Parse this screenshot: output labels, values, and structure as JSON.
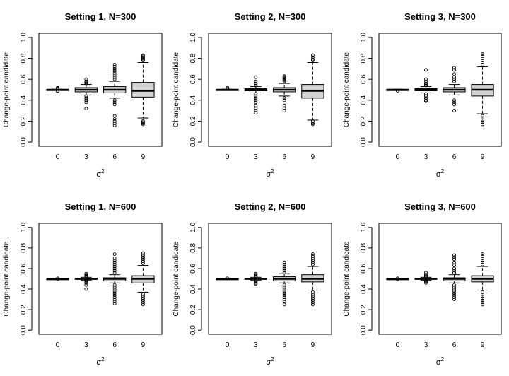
{
  "chart_data": [
    {
      "type": "box",
      "title": "Setting 1, N=300",
      "xlabel": "σ",
      "xlabel_sup": "2",
      "ylabel": "Change-point candidate",
      "ylim": [
        0,
        1
      ],
      "yticks": [
        "0.0",
        "0.2",
        "0.4",
        "0.6",
        "0.8",
        "1.0"
      ],
      "categories": [
        "0",
        "3",
        "6",
        "9"
      ],
      "boxes": [
        {
          "q1": 0.498,
          "median": 0.5,
          "q3": 0.502,
          "lw": 0.495,
          "uw": 0.505,
          "outliers": [
            0.52,
            0.515,
            0.51,
            0.49,
            0.485
          ]
        },
        {
          "q1": 0.48,
          "median": 0.5,
          "q3": 0.52,
          "lw": 0.45,
          "uw": 0.55,
          "outliers": [
            0.6,
            0.58,
            0.57,
            0.56,
            0.44,
            0.42,
            0.4,
            0.38,
            0.32
          ]
        },
        {
          "q1": 0.47,
          "median": 0.5,
          "q3": 0.53,
          "lw": 0.42,
          "uw": 0.58,
          "outliers": [
            0.74,
            0.72,
            0.7,
            0.68,
            0.66,
            0.64,
            0.62,
            0.6,
            0.4,
            0.38,
            0.36,
            0.25,
            0.22,
            0.2,
            0.18,
            0.16
          ]
        },
        {
          "q1": 0.43,
          "median": 0.49,
          "q3": 0.57,
          "lw": 0.23,
          "uw": 0.76,
          "outliers": [
            0.83,
            0.82,
            0.81,
            0.8,
            0.79,
            0.78,
            0.2,
            0.19,
            0.18,
            0.17
          ]
        }
      ]
    },
    {
      "type": "box",
      "title": "Setting 2, N=300",
      "xlabel": "σ",
      "xlabel_sup": "2",
      "ylabel": "Change-point candidate",
      "ylim": [
        0,
        1
      ],
      "yticks": [
        "0.0",
        "0.2",
        "0.4",
        "0.6",
        "0.8",
        "1.0"
      ],
      "categories": [
        "0",
        "3",
        "6",
        "9"
      ],
      "boxes": [
        {
          "q1": 0.498,
          "median": 0.5,
          "q3": 0.502,
          "lw": 0.495,
          "uw": 0.505,
          "outliers": [
            0.52,
            0.51
          ]
        },
        {
          "q1": 0.49,
          "median": 0.5,
          "q3": 0.51,
          "lw": 0.47,
          "uw": 0.53,
          "outliers": [
            0.62,
            0.58,
            0.56,
            0.54,
            0.46,
            0.44,
            0.42,
            0.4,
            0.38,
            0.35,
            0.32,
            0.3,
            0.28
          ]
        },
        {
          "q1": 0.48,
          "median": 0.5,
          "q3": 0.52,
          "lw": 0.44,
          "uw": 0.56,
          "outliers": [
            0.63,
            0.62,
            0.61,
            0.6,
            0.59,
            0.58,
            0.42,
            0.4,
            0.35,
            0.32,
            0.3
          ]
        },
        {
          "q1": 0.42,
          "median": 0.49,
          "q3": 0.55,
          "lw": 0.21,
          "uw": 0.76,
          "outliers": [
            0.83,
            0.81,
            0.79,
            0.78,
            0.2,
            0.18,
            0.17
          ]
        }
      ]
    },
    {
      "type": "box",
      "title": "Setting 3, N=300",
      "xlabel": "σ",
      "xlabel_sup": "2",
      "ylabel": "Change-point candidate",
      "ylim": [
        0,
        1
      ],
      "yticks": [
        "0.0",
        "0.2",
        "0.4",
        "0.6",
        "0.8",
        "1.0"
      ],
      "categories": [
        "0",
        "3",
        "6",
        "9"
      ],
      "boxes": [
        {
          "q1": 0.498,
          "median": 0.5,
          "q3": 0.502,
          "lw": 0.495,
          "uw": 0.505,
          "outliers": [
            0.49
          ]
        },
        {
          "q1": 0.49,
          "median": 0.5,
          "q3": 0.51,
          "lw": 0.47,
          "uw": 0.53,
          "outliers": [
            0.69,
            0.6,
            0.58,
            0.56,
            0.55,
            0.54,
            0.46,
            0.44,
            0.42,
            0.4,
            0.39
          ]
        },
        {
          "q1": 0.48,
          "median": 0.5,
          "q3": 0.52,
          "lw": 0.45,
          "uw": 0.55,
          "outliers": [
            0.71,
            0.69,
            0.65,
            0.62,
            0.6,
            0.58,
            0.4,
            0.38,
            0.36,
            0.3
          ]
        },
        {
          "q1": 0.44,
          "median": 0.5,
          "q3": 0.55,
          "lw": 0.27,
          "uw": 0.72,
          "outliers": [
            0.84,
            0.82,
            0.8,
            0.78,
            0.76,
            0.74,
            0.25,
            0.23,
            0.21,
            0.19,
            0.17
          ]
        }
      ]
    },
    {
      "type": "box",
      "title": "Setting 1, N=600",
      "xlabel": "σ",
      "xlabel_sup": "2",
      "ylabel": "Change-point candidate",
      "ylim": [
        0,
        1
      ],
      "yticks": [
        "0.0",
        "0.2",
        "0.4",
        "0.6",
        "0.8",
        "1.0"
      ],
      "categories": [
        "0",
        "3",
        "6",
        "9"
      ],
      "boxes": [
        {
          "q1": 0.499,
          "median": 0.5,
          "q3": 0.501,
          "lw": 0.497,
          "uw": 0.503,
          "outliers": [
            0.505,
            0.495
          ]
        },
        {
          "q1": 0.495,
          "median": 0.5,
          "q3": 0.505,
          "lw": 0.485,
          "uw": 0.515,
          "outliers": [
            0.55,
            0.54,
            0.53,
            0.52,
            0.48,
            0.47,
            0.46,
            0.44,
            0.4
          ]
        },
        {
          "q1": 0.48,
          "median": 0.5,
          "q3": 0.51,
          "lw": 0.46,
          "uw": 0.54,
          "outliers": [
            0.74,
            0.7,
            0.68,
            0.66,
            0.64,
            0.62,
            0.6,
            0.58,
            0.56,
            0.44,
            0.42,
            0.4,
            0.38,
            0.36,
            0.34,
            0.32,
            0.3,
            0.28,
            0.26
          ]
        },
        {
          "q1": 0.46,
          "median": 0.5,
          "q3": 0.53,
          "lw": 0.37,
          "uw": 0.63,
          "outliers": [
            0.75,
            0.73,
            0.71,
            0.69,
            0.67,
            0.65,
            0.35,
            0.33,
            0.31,
            0.29,
            0.27,
            0.25
          ]
        }
      ]
    },
    {
      "type": "box",
      "title": "Setting 2, N=600",
      "xlabel": "σ",
      "xlabel_sup": "2",
      "ylabel": "Change-point candidate",
      "ylim": [
        0,
        1
      ],
      "yticks": [
        "0.0",
        "0.2",
        "0.4",
        "0.6",
        "0.8",
        "1.0"
      ],
      "categories": [
        "0",
        "3",
        "6",
        "9"
      ],
      "boxes": [
        {
          "q1": 0.499,
          "median": 0.5,
          "q3": 0.501,
          "lw": 0.497,
          "uw": 0.503,
          "outliers": [
            0.505
          ]
        },
        {
          "q1": 0.495,
          "median": 0.5,
          "q3": 0.505,
          "lw": 0.485,
          "uw": 0.515,
          "outliers": [
            0.55,
            0.54,
            0.53,
            0.52,
            0.48,
            0.47,
            0.46,
            0.45
          ]
        },
        {
          "q1": 0.48,
          "median": 0.5,
          "q3": 0.52,
          "lw": 0.46,
          "uw": 0.55,
          "outliers": [
            0.66,
            0.64,
            0.62,
            0.6,
            0.58,
            0.56,
            0.44,
            0.42,
            0.4,
            0.38,
            0.36,
            0.34,
            0.32,
            0.3,
            0.28,
            0.25
          ]
        },
        {
          "q1": 0.47,
          "median": 0.5,
          "q3": 0.54,
          "lw": 0.39,
          "uw": 0.62,
          "outliers": [
            0.74,
            0.72,
            0.7,
            0.68,
            0.66,
            0.64,
            0.37,
            0.35,
            0.33,
            0.31,
            0.29,
            0.27,
            0.25
          ]
        }
      ]
    },
    {
      "type": "box",
      "title": "Setting 3, N=600",
      "xlabel": "σ",
      "xlabel_sup": "2",
      "ylabel": "Change-point candidate",
      "ylim": [
        0,
        1
      ],
      "yticks": [
        "0.0",
        "0.2",
        "0.4",
        "0.6",
        "0.8",
        "1.0"
      ],
      "categories": [
        "0",
        "3",
        "6",
        "9"
      ],
      "boxes": [
        {
          "q1": 0.499,
          "median": 0.5,
          "q3": 0.501,
          "lw": 0.497,
          "uw": 0.503,
          "outliers": [
            0.505,
            0.495
          ]
        },
        {
          "q1": 0.495,
          "median": 0.5,
          "q3": 0.505,
          "lw": 0.485,
          "uw": 0.515,
          "outliers": [
            0.56,
            0.54,
            0.53,
            0.52,
            0.48,
            0.47,
            0.46
          ]
        },
        {
          "q1": 0.48,
          "median": 0.5,
          "q3": 0.51,
          "lw": 0.46,
          "uw": 0.54,
          "outliers": [
            0.73,
            0.71,
            0.69,
            0.66,
            0.63,
            0.6,
            0.58,
            0.56,
            0.44,
            0.42,
            0.4,
            0.38,
            0.36,
            0.34,
            0.32,
            0.3
          ]
        },
        {
          "q1": 0.47,
          "median": 0.5,
          "q3": 0.53,
          "lw": 0.39,
          "uw": 0.62,
          "outliers": [
            0.74,
            0.72,
            0.7,
            0.68,
            0.66,
            0.64,
            0.37,
            0.35,
            0.33,
            0.31,
            0.29,
            0.27,
            0.25
          ]
        }
      ]
    }
  ],
  "colors": {
    "box_fill": "#d3d3d3",
    "stroke": "#000000"
  }
}
